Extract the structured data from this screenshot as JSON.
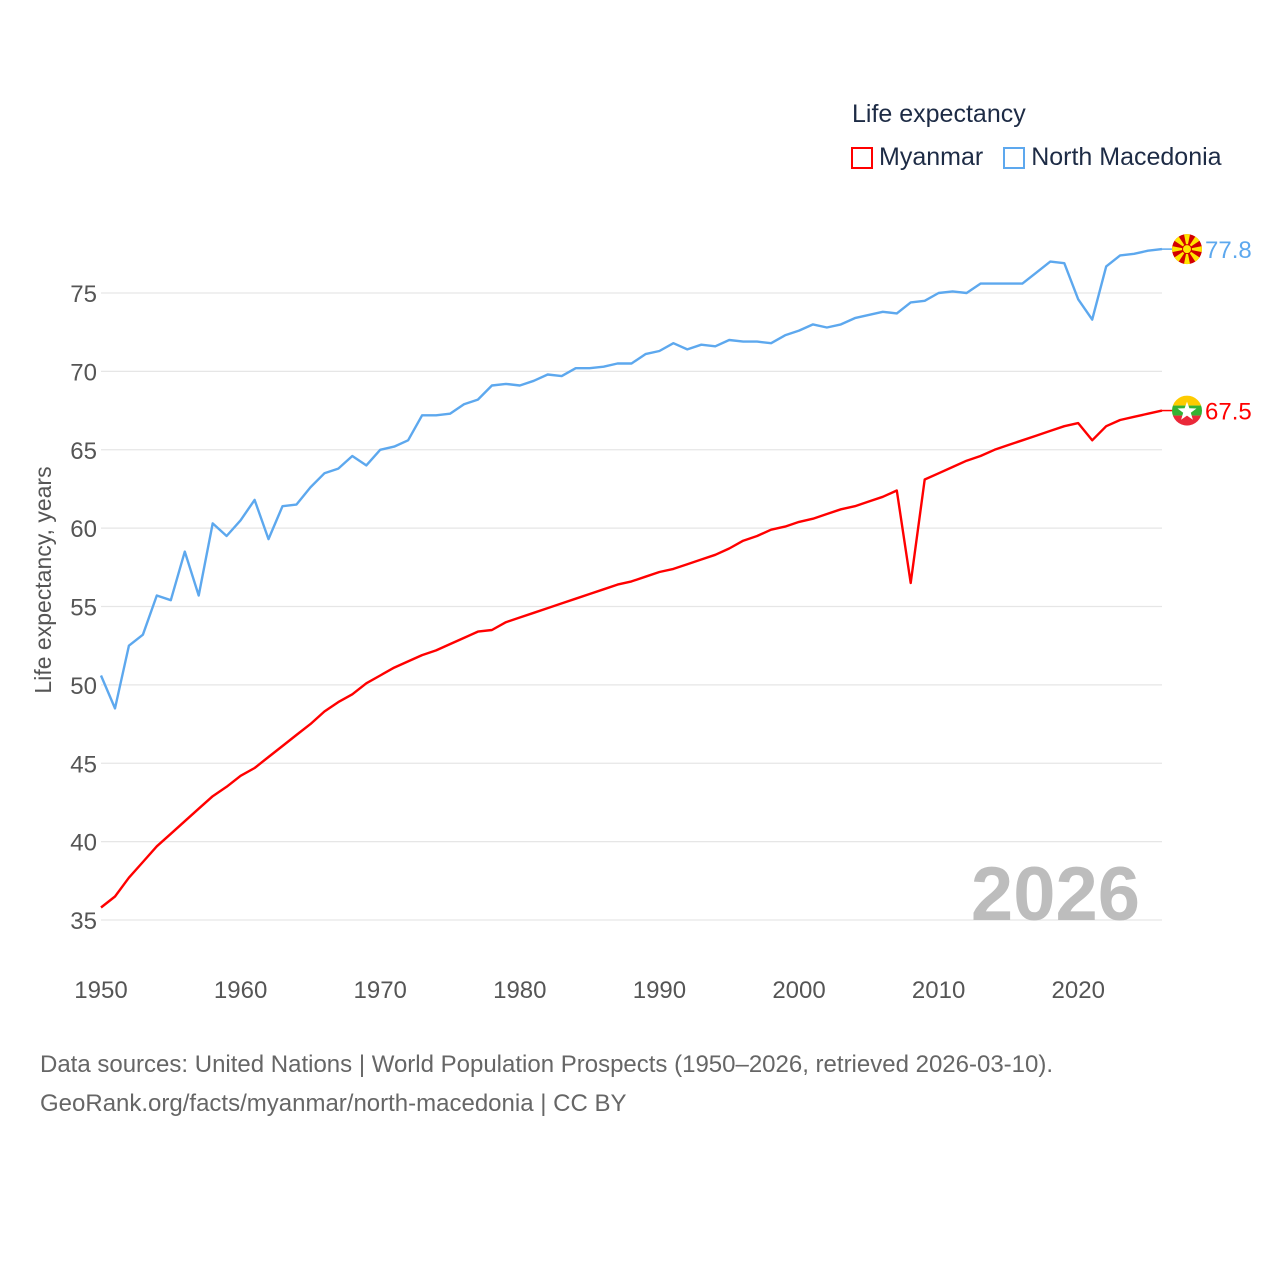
{
  "legend": {
    "title": "Life expectancy",
    "items": [
      {
        "name": "Myanmar",
        "color": "#ff0000"
      },
      {
        "name": "North Macedonia",
        "color": "#5da8ee"
      }
    ]
  },
  "footer": {
    "line1": "Data sources: United Nations | World Population Prospects (1950–2026, retrieved 2026-03-10).",
    "line2": "GeoRank.org/facts/myanmar/north-macedonia | CC BY"
  },
  "chart_data": {
    "type": "line",
    "title": "Life expectancy",
    "xlabel": "",
    "ylabel": "Life expectancy, years",
    "year_watermark": "2026",
    "xlim": [
      1950,
      2026
    ],
    "ylim": [
      32,
      78
    ],
    "x_ticks": [
      1950,
      1960,
      1970,
      1980,
      1990,
      2000,
      2010,
      2020
    ],
    "y_ticks": [
      35,
      40,
      45,
      50,
      55,
      60,
      65,
      70,
      75
    ],
    "grid": true,
    "legend_position": "top-right",
    "x_start": 1950,
    "series": [
      {
        "name": "Myanmar",
        "color": "#ff0000",
        "end_label": "67.5",
        "flag": "myanmar",
        "values": [
          35.8,
          36.5,
          37.7,
          38.7,
          39.7,
          40.5,
          41.3,
          42.1,
          42.9,
          43.5,
          44.2,
          44.7,
          45.4,
          46.1,
          46.8,
          47.5,
          48.3,
          48.9,
          49.4,
          50.1,
          50.6,
          51.1,
          51.5,
          51.9,
          52.2,
          52.6,
          53.0,
          53.4,
          53.5,
          54.0,
          54.3,
          54.6,
          54.9,
          55.2,
          55.5,
          55.8,
          56.1,
          56.4,
          56.6,
          56.9,
          57.2,
          57.4,
          57.7,
          58.0,
          58.3,
          58.7,
          59.2,
          59.5,
          59.9,
          60.1,
          60.4,
          60.6,
          60.9,
          61.2,
          61.4,
          61.7,
          62.0,
          62.4,
          56.5,
          63.1,
          63.5,
          63.9,
          64.3,
          64.6,
          65.0,
          65.3,
          65.6,
          65.9,
          66.2,
          66.5,
          66.7,
          65.6,
          66.5,
          66.9,
          67.1,
          67.3,
          67.5
        ]
      },
      {
        "name": "North Macedonia",
        "color": "#5da8ee",
        "end_label": "77.8",
        "flag": "north-macedonia",
        "values": [
          50.6,
          48.5,
          52.5,
          53.2,
          55.7,
          55.4,
          58.5,
          55.7,
          60.3,
          59.5,
          60.5,
          61.8,
          59.3,
          61.4,
          61.5,
          62.6,
          63.5,
          63.8,
          64.6,
          64.0,
          65.0,
          65.2,
          65.6,
          67.2,
          67.2,
          67.3,
          67.9,
          68.2,
          69.1,
          69.2,
          69.1,
          69.4,
          69.8,
          69.7,
          70.2,
          70.2,
          70.3,
          70.5,
          70.5,
          71.1,
          71.3,
          71.8,
          71.4,
          71.7,
          71.6,
          72.0,
          71.9,
          71.9,
          71.8,
          72.3,
          72.6,
          73.0,
          72.8,
          73.0,
          73.4,
          73.6,
          73.8,
          73.7,
          74.4,
          74.5,
          75.0,
          75.1,
          75.0,
          75.6,
          75.6,
          75.6,
          75.6,
          76.3,
          77.0,
          76.9,
          74.6,
          73.3,
          76.7,
          77.4,
          77.5,
          77.7,
          77.8
        ]
      }
    ]
  }
}
